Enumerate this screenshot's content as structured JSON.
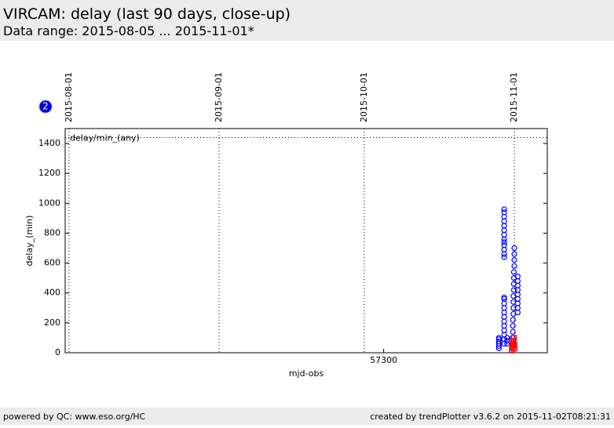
{
  "header": {
    "title": "VIRCAM: delay (last 90 days, close-up)",
    "subtitle": "Data range: 2015-08-05 ... 2015-11-01*"
  },
  "footer": {
    "left": "powered by QC: www.eso.org/HC",
    "right": "created by trendPlotter v3.6.2 on 2015-11-02T08:21:31"
  },
  "badge": "2",
  "chart_data": {
    "type": "scatter",
    "x_label": "mjd-obs",
    "y_label": "delay_(min)",
    "xlim": [
      57234.2,
      57333.8
    ],
    "xticks": [
      57300
    ],
    "ylim": [
      0,
      1500
    ],
    "yticks": [
      0,
      200,
      400,
      600,
      800,
      1000,
      1200,
      1400
    ],
    "date_markers": [
      {
        "value": 57235,
        "label": "2015-08-01"
      },
      {
        "value": 57266,
        "label": "2015-09-01"
      },
      {
        "value": 57296,
        "label": "2015-10-01"
      },
      {
        "value": 57327,
        "label": "2015-11-01"
      }
    ],
    "reference_line": {
      "value": 1440,
      "label": "delay/min_(any)"
    },
    "series": [
      {
        "color": "#0000ff",
        "marker": "circle",
        "x": [
          57323.8,
          57323.8,
          57323.8,
          57323.8,
          57323.8,
          57323.8,
          57324.9,
          57324.9,
          57324.9,
          57324.9,
          57324.9,
          57324.9,
          57324.9,
          57324.9,
          57324.9,
          57324.9,
          57324.9,
          57324.9,
          57324.9,
          57324.9,
          57324.9,
          57324.9,
          57324.9,
          57324.9,
          57324.9,
          57324.9,
          57324.9,
          57324.9,
          57324.9,
          57324.9,
          57324.9,
          57325.5,
          57325.5,
          57325.5,
          57326.6,
          57326.6,
          57326.6,
          57326.7,
          57326.7,
          57326.7,
          57326.8,
          57326.8,
          57326.8,
          57326.8,
          57326.9,
          57326.9,
          57326.9,
          57326.9,
          57327.0,
          57327.0,
          57327.0,
          57327.0,
          57327.7,
          57327.7,
          57327.7,
          57327.7,
          57327.7,
          57327.7,
          57327.7,
          57327.7,
          57327.7
        ],
        "values": [
          30,
          45,
          60,
          75,
          90,
          100,
          640,
          660,
          690,
          720,
          740,
          760,
          790,
          820,
          850,
          880,
          910,
          940,
          960,
          60,
          90,
          120,
          150,
          180,
          210,
          240,
          270,
          300,
          330,
          360,
          370,
          60,
          80,
          100,
          30,
          60,
          100,
          140,
          180,
          220,
          260,
          300,
          340,
          380,
          420,
          460,
          500,
          540,
          580,
          620,
          660,
          700,
          270,
          300,
          330,
          360,
          390,
          420,
          450,
          480,
          510
        ]
      },
      {
        "color": "#ff0000",
        "marker": "square",
        "x": [
          57326.5,
          57326.6,
          57326.7,
          57326.8,
          57326.9,
          57327.0,
          57327.0
        ],
        "values": [
          20,
          40,
          60,
          80,
          100,
          30,
          50
        ]
      }
    ]
  }
}
